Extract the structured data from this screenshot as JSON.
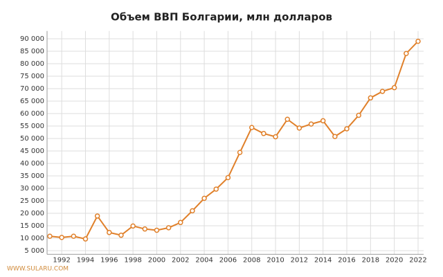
{
  "chart_data": {
    "type": "line",
    "title": "Объем ВВП Болгарии, млн долларов",
    "watermark": "WWW.SULARU.COM",
    "x": [
      1991,
      1992,
      1993,
      1994,
      1995,
      1996,
      1997,
      1998,
      1999,
      2000,
      2001,
      2002,
      2003,
      2004,
      2005,
      2006,
      2007,
      2008,
      2009,
      2010,
      2011,
      2012,
      2013,
      2014,
      2015,
      2016,
      2017,
      2018,
      2019,
      2020,
      2021,
      2022
    ],
    "series": [
      {
        "color": "#e0802a",
        "values": [
          10800,
          10300,
          10800,
          9700,
          18900,
          12300,
          11200,
          14900,
          13700,
          13200,
          14200,
          16300,
          21000,
          26000,
          29700,
          34300,
          44400,
          54400,
          52000,
          50700,
          57700,
          54200,
          55800,
          57100,
          50800,
          53900,
          59300,
          66300,
          68900,
          70400,
          84100,
          89000
        ]
      }
    ],
    "xlim": [
      1991,
      2022
    ],
    "xticks": [
      1992,
      1994,
      1996,
      1998,
      2000,
      2002,
      2004,
      2006,
      2008,
      2010,
      2012,
      2014,
      2016,
      2018,
      2020,
      2022
    ],
    "ylim": [
      3800,
      92000
    ],
    "yticks": [
      {
        "value": 5000,
        "label": "5 000"
      },
      {
        "value": 10000,
        "label": "10 000"
      },
      {
        "value": 15000,
        "label": "15 000"
      },
      {
        "value": 20000,
        "label": "20 000"
      },
      {
        "value": 25000,
        "label": "25 000"
      },
      {
        "value": 30000,
        "label": "30 000"
      },
      {
        "value": 35000,
        "label": "35 000"
      },
      {
        "value": 40000,
        "label": "40 000"
      },
      {
        "value": 45000,
        "label": "45 000"
      },
      {
        "value": 50000,
        "label": "50 000"
      },
      {
        "value": 55000,
        "label": "55 000"
      },
      {
        "value": 60000,
        "label": "60 000"
      },
      {
        "value": 65000,
        "label": "65 000"
      },
      {
        "value": 70000,
        "label": "70 000"
      },
      {
        "value": 75000,
        "label": "75 000"
      },
      {
        "value": 80000,
        "label": "80 000"
      },
      {
        "value": 85000,
        "label": "85 000"
      },
      {
        "value": 90000,
        "label": "90 000"
      }
    ],
    "grid": true
  }
}
